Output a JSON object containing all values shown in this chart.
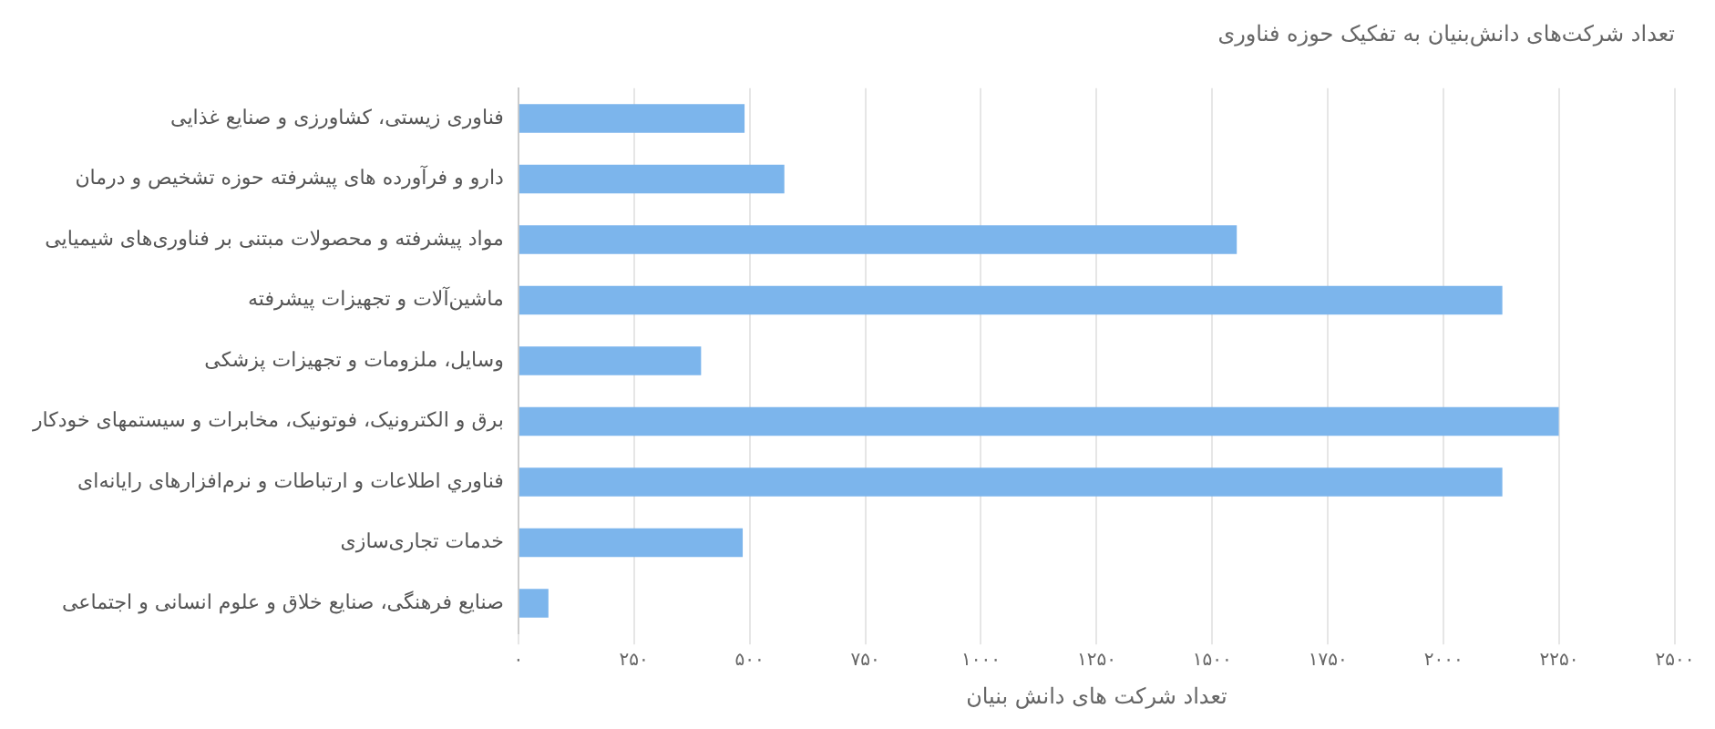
{
  "chart_data": {
    "type": "bar",
    "orientation": "horizontal",
    "title": "تعداد شرکت‌های دانش‌بنیان به تفکیک حوزه فناوری",
    "xlabel": "تعداد شرکت های دانش بنیان",
    "categories": [
      "فناوری زیستی، کشاورزی و صنایع غذایی",
      "دارو و فرآورده های پیشرفته حوزه تشخیص و درمان",
      "مواد پیشرفته و محصولات مبتنی بر فناوری‌های شیمیایی",
      "ماشین‌آلات و تجهیزات پیشرفته",
      "وسایل، ملزومات و تجهیزات پزشکی",
      "برق و الکترونیک، فوتونیک، مخابرات و سیستمهای خودکار",
      "فناوري اطلاعات و ارتباطات و نرم‌افزارهای رایانه‌ای",
      "خدمات تجاری‌سازی",
      "صنایع فرهنگی، صنایع خلاق و علوم انسانی و اجتماعی"
    ],
    "values": [
      489,
      575,
      1553,
      2127,
      395,
      2249,
      2127,
      485,
      65
    ],
    "color": "#7cb5ec",
    "xlim": [
      0,
      2500
    ],
    "xticks": [
      {
        "value": 0,
        "label": "۰"
      },
      {
        "value": 250,
        "label": "۲۵۰"
      },
      {
        "value": 500,
        "label": "۵۰۰"
      },
      {
        "value": 750,
        "label": "۷۵۰"
      },
      {
        "value": 1000,
        "label": "۱۰۰۰"
      },
      {
        "value": 1250,
        "label": "۱۲۵۰"
      },
      {
        "value": 1500,
        "label": "۱۵۰۰"
      },
      {
        "value": 1750,
        "label": "۱۷۵۰"
      },
      {
        "value": 2000,
        "label": "۲۰۰۰"
      },
      {
        "value": 2250,
        "label": "۲۲۵۰"
      },
      {
        "value": 2500,
        "label": "۲۵۰۰"
      }
    ],
    "grid": "x"
  }
}
